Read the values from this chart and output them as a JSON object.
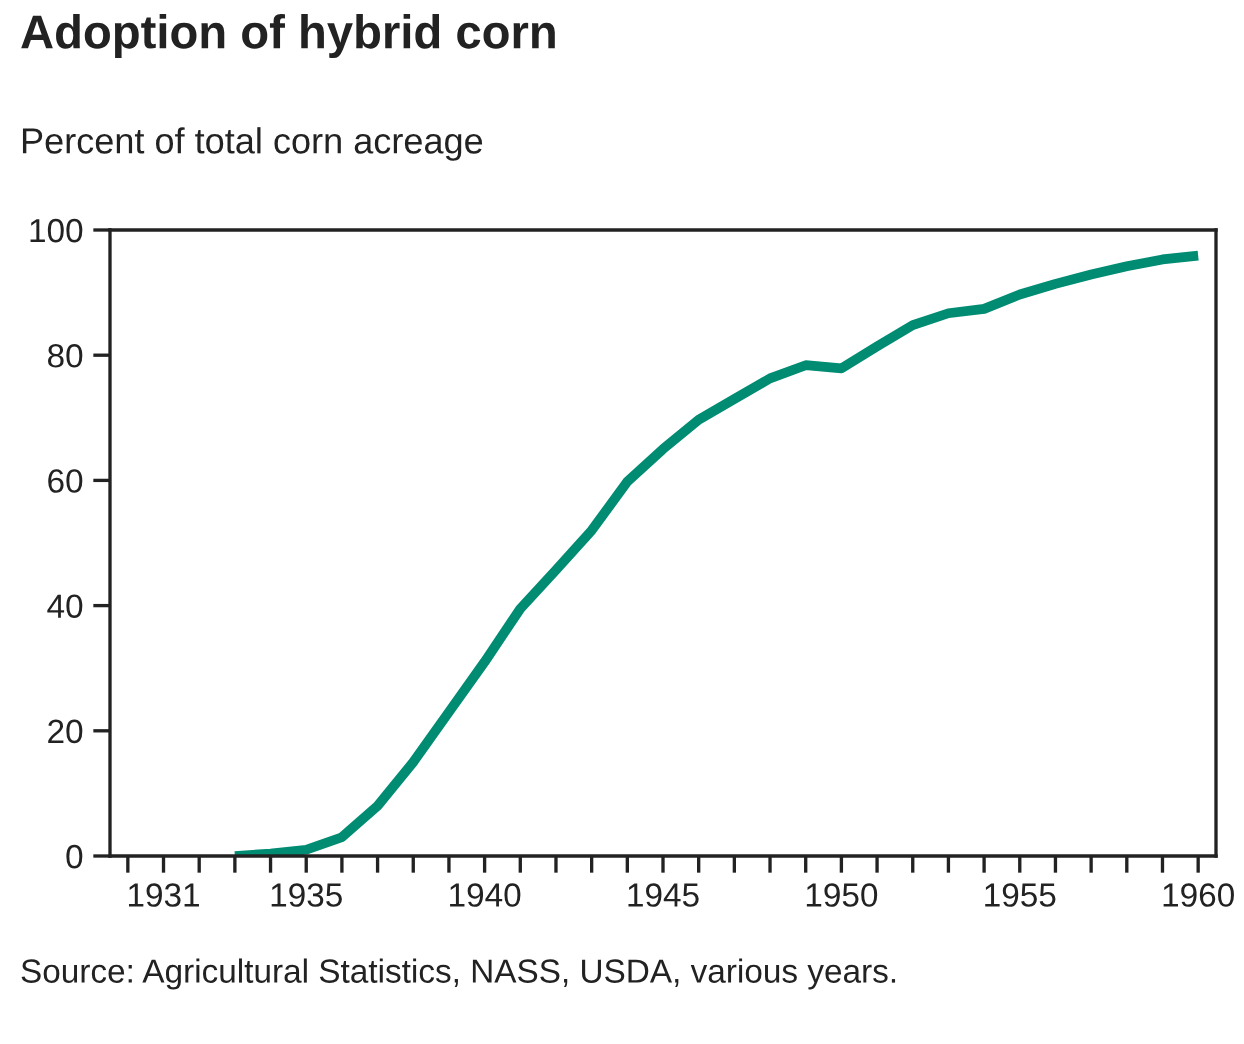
{
  "chart_data": {
    "type": "line",
    "title": "Adoption of hybrid corn",
    "subtitle": "Percent of total corn acreage",
    "annotations": [
      "Source: Agricultural Statistics, NASS, USDA, various years."
    ],
    "x": [
      1933,
      1934,
      1935,
      1936,
      1937,
      1938,
      1939,
      1940,
      1941,
      1942,
      1943,
      1944,
      1945,
      1946,
      1947,
      1948,
      1949,
      1950,
      1951,
      1952,
      1953,
      1954,
      1955,
      1956,
      1957,
      1958,
      1959,
      1960
    ],
    "series": [
      {
        "color": "#008c72",
        "values": [
          0,
          0.4,
          1,
          3,
          8,
          15,
          23,
          31,
          39.5,
          45.7,
          52,
          59.8,
          65,
          69.7,
          73,
          76.3,
          78.4,
          77.9,
          81.4,
          84.8,
          86.7,
          87.4,
          89.7,
          91.4,
          92.9,
          94.2,
          95.3,
          95.9
        ]
      }
    ],
    "xlim": [
      1929.5,
      1960.5
    ],
    "ylim": [
      0,
      100
    ],
    "xticks": [
      {
        "value": 1930,
        "label": null
      },
      1931,
      {
        "value": 1932,
        "label": null
      },
      {
        "value": 1933,
        "label": null
      },
      {
        "value": 1934,
        "label": null
      },
      1935,
      {
        "value": 1936,
        "label": null
      },
      {
        "value": 1937,
        "label": null
      },
      {
        "value": 1938,
        "label": null
      },
      {
        "value": 1939,
        "label": null
      },
      1940,
      {
        "value": 1941,
        "label": null
      },
      {
        "value": 1942,
        "label": null
      },
      {
        "value": 1943,
        "label": null
      },
      {
        "value": 1944,
        "label": null
      },
      1945,
      {
        "value": 1946,
        "label": null
      },
      {
        "value": 1947,
        "label": null
      },
      {
        "value": 1948,
        "label": null
      },
      {
        "value": 1949,
        "label": null
      },
      1950,
      {
        "value": 1951,
        "label": null
      },
      {
        "value": 1952,
        "label": null
      },
      {
        "value": 1953,
        "label": null
      },
      {
        "value": 1954,
        "label": null
      },
      1955,
      {
        "value": 1956,
        "label": null
      },
      {
        "value": 1957,
        "label": null
      },
      {
        "value": 1958,
        "label": null
      },
      {
        "value": 1959,
        "label": null
      },
      1960
    ],
    "yticks": [
      0,
      20,
      40,
      60,
      80,
      100
    ],
    "grid": false,
    "legend": false,
    "marker": "none",
    "line_style": "solid"
  }
}
